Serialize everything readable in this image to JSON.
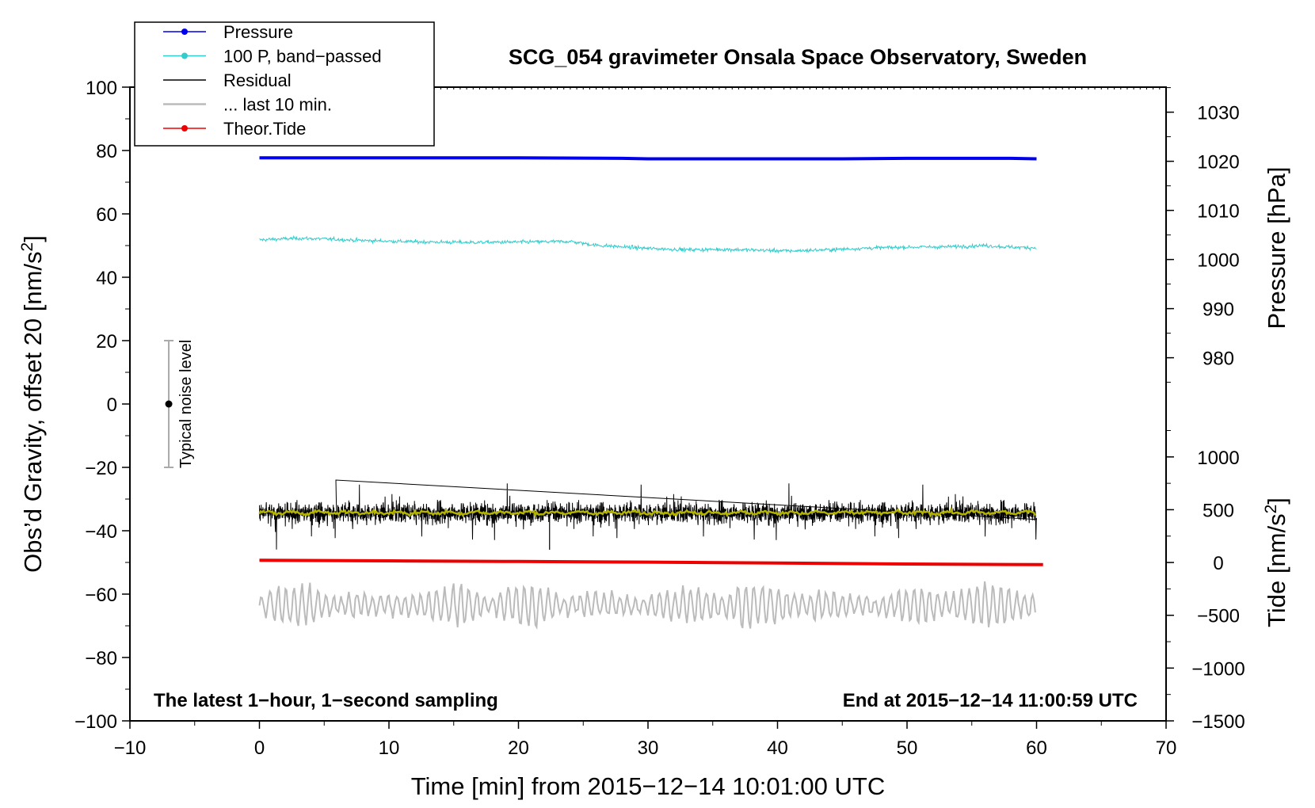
{
  "chart_data": {
    "type": "line",
    "title": "SCG_054 gravimeter Onsala Space Observatory, Sweden",
    "xlabel": "Time [min] from 2015−12−14 10:01:00 UTC",
    "ylabel": "Obs’d Gravity, offset 20 [nm/s²]",
    "xlim": [
      -10,
      70
    ],
    "ylim": [
      -100,
      100
    ],
    "x_ticks": [
      -10,
      0,
      10,
      20,
      30,
      40,
      50,
      60,
      70
    ],
    "x_tick_labels": [
      "−10",
      "0",
      "10",
      "20",
      "30",
      "40",
      "50",
      "60",
      "70"
    ],
    "y_ticks": [
      -100,
      -80,
      -60,
      -40,
      -20,
      0,
      20,
      40,
      60,
      80,
      100
    ],
    "y_tick_labels": [
      "−100",
      "−80",
      "−60",
      "−40",
      "−20",
      "0",
      "20",
      "40",
      "60",
      "80",
      "100"
    ],
    "right_axes": [
      {
        "label": "Pressure [hPa]",
        "ticks": [
          980,
          990,
          1000,
          1010,
          1020,
          1030
        ],
        "tick_labels": [
          "980",
          "990",
          "1000",
          "1010",
          "1020",
          "1030"
        ],
        "map": {
          "value_a": 1000,
          "gravity_a": 45.6,
          "value_b": 1020,
          "gravity_b": 76.6
        }
      },
      {
        "label": "Tide [nm/s²]",
        "ticks": [
          -1500,
          -1000,
          -500,
          0,
          500,
          1000
        ],
        "tick_labels": [
          "−1500",
          "−1000",
          "−500",
          "0",
          "500",
          "1000"
        ],
        "map": {
          "value_a": -1500,
          "gravity_a": -100,
          "value_b": 1000,
          "gravity_b": -16.7
        }
      }
    ],
    "legend": {
      "placement": "top-left",
      "entries": [
        {
          "label": "Pressure",
          "color": "#0000ee",
          "marker": true
        },
        {
          "label": "100 P, band−passed",
          "color": "#33cccc",
          "marker": true
        },
        {
          "label": "Residual",
          "color": "#000000",
          "marker": false
        },
        {
          "label": "... last 10 min.",
          "color": "#bbbbbb",
          "marker": false
        },
        {
          "label": "Theor.Tide",
          "color": "#ee0000",
          "marker": true
        }
      ]
    },
    "series": [
      {
        "name": "Pressure",
        "color": "#0000ee",
        "offset_units": "hPa",
        "points": [
          [
            0,
            1020.7
          ],
          [
            10,
            1020.7
          ],
          [
            20,
            1020.7
          ],
          [
            28,
            1020.6
          ],
          [
            30,
            1020.5
          ],
          [
            40,
            1020.5
          ],
          [
            45,
            1020.5
          ],
          [
            50,
            1020.6
          ],
          [
            55,
            1020.6
          ],
          [
            58,
            1020.6
          ],
          [
            60,
            1020.5
          ]
        ]
      },
      {
        "name": "100 P, band−passed",
        "color": "#33cccc",
        "points": [
          [
            0,
            51.8
          ],
          [
            3,
            52.3
          ],
          [
            5,
            52.1
          ],
          [
            8,
            51.6
          ],
          [
            12,
            51.2
          ],
          [
            16,
            51.0
          ],
          [
            20,
            51.1
          ],
          [
            24,
            51.3
          ],
          [
            26,
            50.1
          ],
          [
            28,
            49.6
          ],
          [
            30,
            49.1
          ],
          [
            33,
            48.7
          ],
          [
            36,
            48.8
          ],
          [
            39,
            48.5
          ],
          [
            41,
            48.3
          ],
          [
            44,
            48.7
          ],
          [
            47,
            49.2
          ],
          [
            50,
            49.5
          ],
          [
            53,
            49.6
          ],
          [
            56,
            50.0
          ],
          [
            58,
            49.5
          ],
          [
            60,
            49.3
          ]
        ]
      },
      {
        "name": "Residual",
        "color": "#000000",
        "center": -34.5,
        "typical_amplitude": 5,
        "max_excursions": [
          -24,
          -46
        ]
      },
      {
        "name": "Residual smoothed",
        "color": "#b3b300",
        "center": -34.3
      },
      {
        "name": "... last 10 min.",
        "color": "#bbbbbb",
        "center": -63.5,
        "amplitude": 8
      },
      {
        "name": "Theor.Tide",
        "color": "#ee0000",
        "points": [
          [
            0,
            -49.3
          ],
          [
            10,
            -49.5
          ],
          [
            20,
            -49.7
          ],
          [
            30,
            -49.9
          ],
          [
            40,
            -50.2
          ],
          [
            50,
            -50.5
          ],
          [
            60.5,
            -50.7
          ]
        ]
      }
    ],
    "noise_bar": {
      "label": "Typical noise level",
      "x": -7,
      "center": 0,
      "low": -20,
      "high": 20
    },
    "annotations": {
      "bottom_left": "The latest 1−hour, 1−second sampling",
      "bottom_right": "End at 2015−12−14 11:00:59 UTC"
    }
  }
}
